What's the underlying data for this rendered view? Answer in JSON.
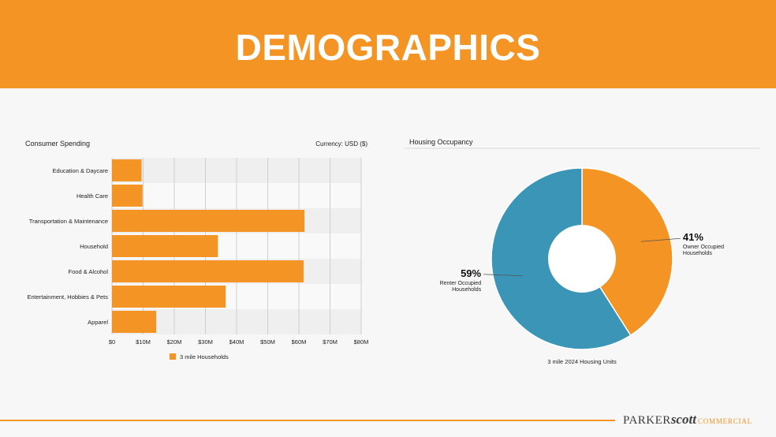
{
  "page": {
    "title": "DEMOGRAPHICS"
  },
  "footer": {
    "logo_parker": "PARKER",
    "logo_scott": "scott",
    "logo_commercial": "COMMERCIAL"
  },
  "colors": {
    "orange": "#f39425",
    "teal": "#3a95b7"
  },
  "chart_data": [
    {
      "type": "bar",
      "orientation": "horizontal",
      "title": "Consumer Spending",
      "subtitle": "Currency: USD ($)",
      "categories": [
        "Education & Daycare",
        "Health Care",
        "Transportation & Maintenance",
        "Household",
        "Food & Alcohol",
        "Entertainment, Hobbies & Pets",
        "Apparel"
      ],
      "series": [
        {
          "name": "3 mile Households",
          "values": [
            9.5,
            9.8,
            61.8,
            34.0,
            61.5,
            36.5,
            14.2
          ]
        }
      ],
      "xlim": [
        0,
        80
      ],
      "x_ticks": [
        "$0",
        "$10M",
        "$20M",
        "$30M",
        "$40M",
        "$50M",
        "$60M",
        "$70M",
        "$80M"
      ],
      "legend": "bottom",
      "grid": true
    },
    {
      "type": "pie",
      "donut": true,
      "title": "Housing Occupancy",
      "caption": "3 mile 2024 Housing Units",
      "slices": [
        {
          "label": "Owner Occupied Households",
          "value": 41,
          "display": "41%"
        },
        {
          "label": "Renter Occupied Households",
          "value": 59,
          "display": "59%"
        }
      ]
    }
  ]
}
